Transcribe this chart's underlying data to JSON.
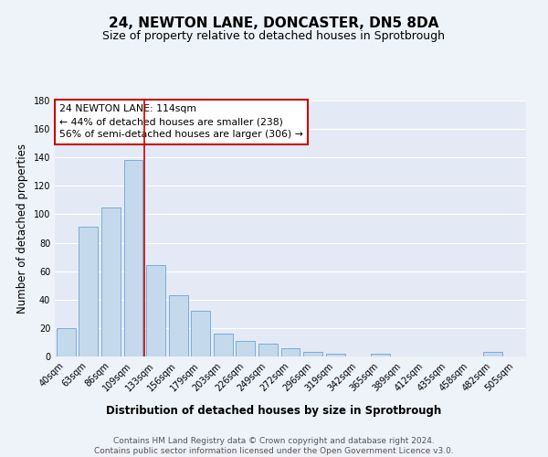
{
  "title": "24, NEWTON LANE, DONCASTER, DN5 8DA",
  "subtitle": "Size of property relative to detached houses in Sprotbrough",
  "xlabel": "Distribution of detached houses by size in Sprotbrough",
  "ylabel": "Number of detached properties",
  "categories": [
    "40sqm",
    "63sqm",
    "86sqm",
    "109sqm",
    "133sqm",
    "156sqm",
    "179sqm",
    "203sqm",
    "226sqm",
    "249sqm",
    "272sqm",
    "296sqm",
    "319sqm",
    "342sqm",
    "365sqm",
    "389sqm",
    "412sqm",
    "435sqm",
    "458sqm",
    "482sqm",
    "505sqm"
  ],
  "values": [
    20,
    91,
    105,
    138,
    64,
    43,
    32,
    16,
    11,
    9,
    6,
    3,
    2,
    0,
    2,
    0,
    0,
    0,
    0,
    3,
    0
  ],
  "bar_color": "#c5d9ed",
  "bar_edge_color": "#7aadd4",
  "vline_x": 3.5,
  "vline_color": "#cc0000",
  "annotation_line1": "24 NEWTON LANE: 114sqm",
  "annotation_line2": "← 44% of detached houses are smaller (238)",
  "annotation_line3": "56% of semi-detached houses are larger (306) →",
  "ylim": [
    0,
    180
  ],
  "yticks": [
    0,
    20,
    40,
    60,
    80,
    100,
    120,
    140,
    160,
    180
  ],
  "footnote": "Contains HM Land Registry data © Crown copyright and database right 2024.\nContains public sector information licensed under the Open Government Licence v3.0.",
  "bg_color": "#eef2f9",
  "plot_bg_color": "#e4eaf5",
  "grid_color": "#ffffff",
  "title_fontsize": 11,
  "subtitle_fontsize": 9,
  "axis_label_fontsize": 8.5,
  "tick_fontsize": 7,
  "footnote_fontsize": 6.5
}
